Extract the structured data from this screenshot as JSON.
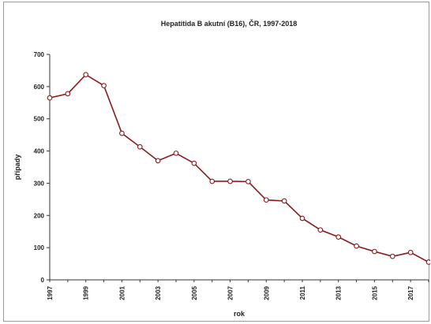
{
  "chart_data": {
    "type": "line",
    "title": "Hepatitida B akutní (B16), ČR, 1997-2018",
    "xlabel": "rok",
    "ylabel": "případy",
    "x": [
      1997,
      1998,
      1999,
      2000,
      2001,
      2002,
      2003,
      2004,
      2005,
      2006,
      2007,
      2008,
      2009,
      2010,
      2011,
      2012,
      2013,
      2014,
      2015,
      2016,
      2017,
      2018
    ],
    "x_tick_labels": [
      "1997",
      "1999",
      "2001",
      "2003",
      "2005",
      "2007",
      "2009",
      "2011",
      "2013",
      "2015",
      "2017"
    ],
    "y_ticks": [
      "0",
      "100",
      "200",
      "300",
      "400",
      "500",
      "600",
      "700"
    ],
    "ylim": [
      0,
      700
    ],
    "grid": false,
    "series": [
      {
        "values": [
          565,
          578,
          637,
          603,
          455,
          413,
          370,
          393,
          362,
          306,
          306,
          305,
          248,
          245,
          191,
          155,
          133,
          105,
          88,
          73,
          85,
          55
        ],
        "color": "#8b1a1a",
        "marker_fill": "#ffffff"
      }
    ]
  }
}
